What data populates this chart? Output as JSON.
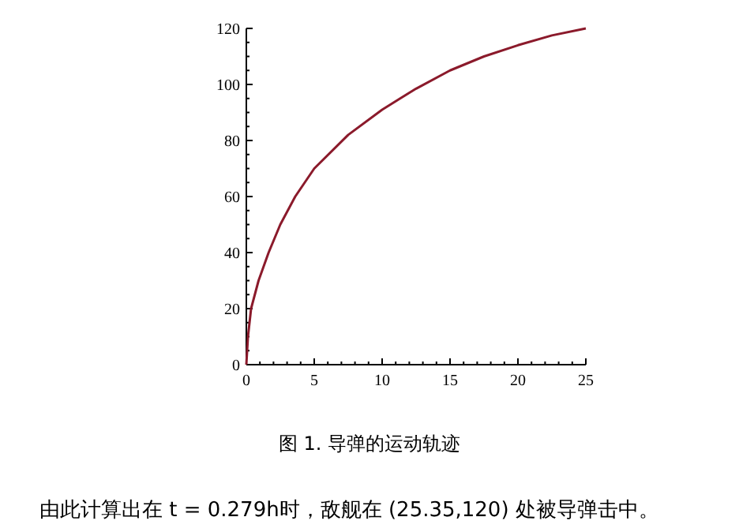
{
  "chart_data": {
    "type": "line",
    "x": [
      0,
      0.12,
      0.35,
      0.9,
      1.64,
      2.5,
      3.6,
      5,
      7.5,
      10,
      12.5,
      15,
      17.5,
      20,
      22.5,
      25
    ],
    "series": [
      {
        "color": "#8b1a2b",
        "values": [
          0,
          10,
          20,
          30,
          40,
          50,
          60,
          70,
          82,
          91,
          98.5,
          105,
          110,
          114,
          117.5,
          120
        ]
      }
    ],
    "xlim": [
      0,
      25
    ],
    "ylim": [
      0,
      120
    ],
    "xticks": [
      0,
      5,
      10,
      15,
      20,
      25
    ],
    "yticks": [
      0,
      20,
      40,
      60,
      80,
      100,
      120
    ],
    "grid": false,
    "marker": "none",
    "line_style": "solid",
    "annotations": [
      "图 1. 导弹的运动轨迹",
      "由此计算出在 t = 0.279h时，敌舰在 (25.35,120) 处被导弹击中。"
    ]
  }
}
